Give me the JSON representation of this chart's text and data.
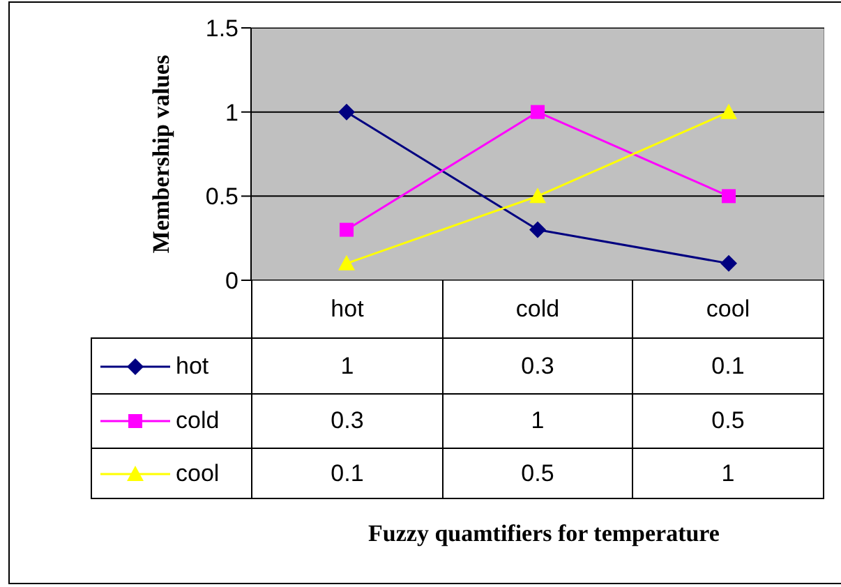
{
  "chart_data": {
    "type": "line",
    "annotations": [
      "Fuzzy quamtifiers for temperature"
    ],
    "ylabel": "Membership values",
    "categories": [
      "hot",
      "cold",
      "cool"
    ],
    "series": [
      {
        "name": "hot",
        "color": "#000080",
        "values": [
          1,
          0.3,
          0.1
        ],
        "marker": "diamond"
      },
      {
        "name": "cold",
        "color": "#ff00ff",
        "values": [
          0.3,
          1,
          0.5
        ],
        "marker": "square"
      },
      {
        "name": "cool",
        "color": "#ffff00",
        "values": [
          0.1,
          0.5,
          1
        ],
        "marker": "triangle"
      }
    ],
    "ylim": [
      0,
      1.5
    ],
    "yticks": [
      0,
      0.5,
      1,
      1.5
    ],
    "grid": "y",
    "data_labels": true,
    "legend": "bottom left"
  }
}
